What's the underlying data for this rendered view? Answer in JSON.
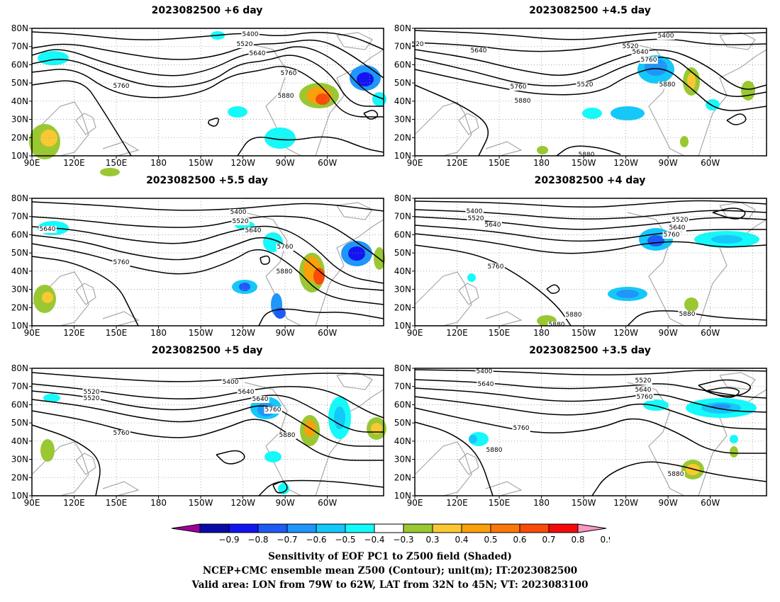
{
  "panels": [
    {
      "id": "p1",
      "title": "2023082500  +6 day"
    },
    {
      "id": "p2",
      "title": "2023082500  +4.5  day"
    },
    {
      "id": "p3",
      "title": "2023082500  +5.5  day"
    },
    {
      "id": "p4",
      "title": "2023082500  +4  day"
    },
    {
      "id": "p5",
      "title": "2023082500  +5  day"
    },
    {
      "id": "p6",
      "title": "2023082500  +3.5  day"
    }
  ],
  "axes": {
    "lat_labels": [
      "80N",
      "70N",
      "60N",
      "50N",
      "40N",
      "30N",
      "20N",
      "10N"
    ],
    "lon_labels": [
      "90E",
      "120E",
      "150E",
      "180",
      "150W",
      "120W",
      "90W",
      "60W"
    ],
    "lat_range": [
      10,
      80
    ],
    "lon_range": [
      90,
      340
    ]
  },
  "contour_labels": {
    "p1": [
      "5400",
      "5520",
      "5640",
      "5760",
      "5760",
      "5880"
    ],
    "p2": [
      "520",
      "5640",
      "5400",
      "5520",
      "5640",
      "5760",
      "5760",
      "5520",
      "5880",
      "5880",
      "5880"
    ],
    "p3": [
      "5400",
      "5520",
      "5640",
      "5640",
      "5760",
      "5760",
      "5880"
    ],
    "p4": [
      "5400",
      "5520",
      "5640",
      "5520",
      "5640",
      "5760",
      "5760",
      "5880",
      "5880",
      "5880"
    ],
    "p5": [
      "5400",
      "5520",
      "5640",
      "5520",
      "5640",
      "5760",
      "5760",
      "5880"
    ],
    "p6": [
      "5400",
      "5640",
      "5520",
      "5640",
      "5760",
      "5760",
      "5880",
      "5880"
    ]
  },
  "colorbar": {
    "ticks": [
      "−0.9",
      "−0.8",
      "−0.7",
      "−0.6",
      "−0.5",
      "−0.4",
      "−0.3",
      "0.3",
      "0.4",
      "0.5",
      "0.6",
      "0.7",
      "0.8",
      "0.9"
    ],
    "colors": [
      "#a0009a",
      "#0a0aa8",
      "#1414f0",
      "#1e5af5",
      "#1e96fa",
      "#14c8fa",
      "#14fafa",
      "#ffffff",
      "#9ac832",
      "#fac832",
      "#faa00a",
      "#fa780a",
      "#fa4b0a",
      "#f50a0a",
      "#fa96c8"
    ]
  },
  "captions": [
    "Sensitivity of EOF PC1 to Z500 field (Shaded)",
    "NCEP+CMC ensemble mean Z500 (Contour); unit(m); IT:2023082500",
    "Valid area: LON from 79W to 62W, LAT from 32N to 45N; VT: 2023083100"
  ],
  "colors": {
    "land": "#a8a8a8",
    "contour": "#000000",
    "grid": "#9a9a9a"
  }
}
